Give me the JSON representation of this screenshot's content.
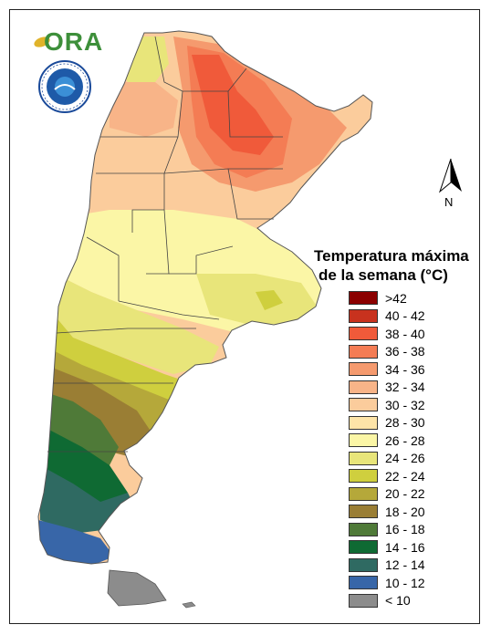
{
  "map": {
    "title_line1": "Temperatura máxima",
    "title_line2": "de la semana (°C)",
    "north_label": "N",
    "logo_text": "ORA"
  },
  "legend": [
    {
      "label": ">42",
      "color": "#8b0000"
    },
    {
      "label": "40 - 42",
      "color": "#c8321e"
    },
    {
      "label": "38 - 40",
      "color": "#f05a3a"
    },
    {
      "label": "36 - 38",
      "color": "#f47c54"
    },
    {
      "label": "34 - 36",
      "color": "#f59a6e"
    },
    {
      "label": "32 - 34",
      "color": "#f8b488"
    },
    {
      "label": "30 - 32",
      "color": "#fbcc9c"
    },
    {
      "label": "28 - 30",
      "color": "#fde4a8"
    },
    {
      "label": "26 - 28",
      "color": "#fbf6a6"
    },
    {
      "label": "24 - 26",
      "color": "#e8e57a"
    },
    {
      "label": "22 - 24",
      "color": "#cfcf3e"
    },
    {
      "label": "20 - 22",
      "color": "#b5a83a"
    },
    {
      "label": "18 - 20",
      "color": "#9a7e34"
    },
    {
      "label": "16 - 18",
      "color": "#4f7a38"
    },
    {
      "label": "14 - 16",
      "color": "#0f6a33"
    },
    {
      "label": "12 - 14",
      "color": "#2f6a62"
    },
    {
      "label": "10 - 12",
      "color": "#3866a8"
    },
    {
      "label": "< 10",
      "color": "#8c8c8c"
    }
  ]
}
